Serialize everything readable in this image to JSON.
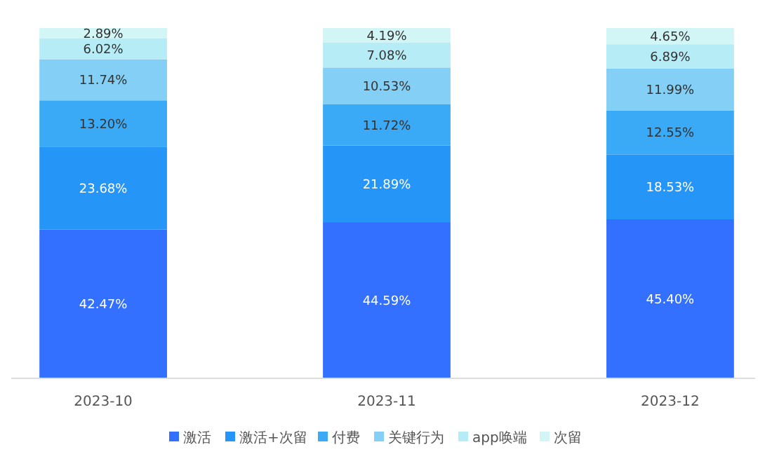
{
  "chart_data": {
    "type": "bar",
    "stacked": true,
    "categories": [
      "2023-10",
      "2023-11",
      "2023-12"
    ],
    "ylim": [
      0,
      100
    ],
    "tick_labels": "x",
    "legend": "bottom",
    "series": [
      {
        "name": "激活",
        "color": "#3370ff",
        "values": [
          42.47,
          44.59,
          45.4
        ],
        "value_labels": [
          "42.47%",
          "44.59%",
          "45.40%"
        ]
      },
      {
        "name": "激活+次留",
        "color": "#2596f7",
        "values": [
          23.68,
          21.89,
          18.53
        ],
        "value_labels": [
          "23.68%",
          "21.89%",
          "18.53%"
        ]
      },
      {
        "name": "付费",
        "color": "#3aa9f6",
        "values": [
          13.2,
          11.72,
          12.55
        ],
        "value_labels": [
          "13.20%",
          "11.72%",
          "12.55%"
        ]
      },
      {
        "name": "关键行为",
        "color": "#84cff5",
        "values": [
          11.74,
          10.53,
          11.99
        ],
        "value_labels": [
          "11.74%",
          "10.53%",
          "11.99%"
        ]
      },
      {
        "name": "app唤端",
        "color": "#b6ecf6",
        "values": [
          6.02,
          7.08,
          6.89
        ],
        "value_labels": [
          "6.02%",
          "7.08%",
          "6.89%"
        ]
      },
      {
        "name": "次留",
        "color": "#d2f5f6",
        "values": [
          2.89,
          4.19,
          4.65
        ],
        "value_labels": [
          "2.89%",
          "4.19%",
          "4.65%"
        ]
      }
    ]
  }
}
